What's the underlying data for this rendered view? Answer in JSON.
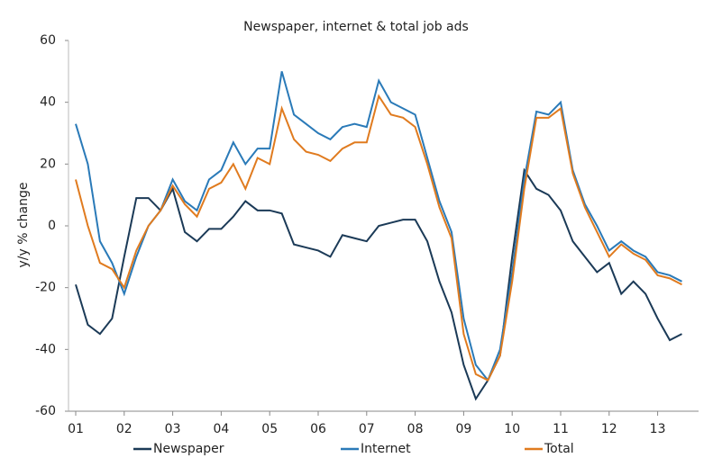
{
  "chart_data": {
    "type": "line",
    "title": "Newspaper, internet & total job ads",
    "y_label": "y/y % change",
    "categories": [
      "01",
      null,
      null,
      null,
      "02",
      null,
      null,
      null,
      "03",
      null,
      null,
      null,
      "04",
      null,
      null,
      null,
      "05",
      null,
      null,
      null,
      "06",
      null,
      null,
      null,
      "07",
      null,
      null,
      null,
      "08",
      null,
      null,
      null,
      "09",
      null,
      null,
      null,
      "10",
      null,
      null,
      null,
      "11",
      null,
      null,
      null,
      "12",
      null,
      null,
      null,
      "13",
      null,
      null
    ],
    "series": [
      {
        "name": "Newspaper",
        "color": "#1b3a57",
        "values": [
          -19,
          -32,
          -35,
          -30,
          -10,
          9,
          9,
          5,
          12,
          -2,
          -5,
          -1,
          -1,
          3,
          8,
          5,
          5,
          4,
          -6,
          -7,
          -8,
          -10,
          -3,
          -4,
          -5,
          0,
          1,
          2,
          2,
          -5,
          -18,
          -28,
          -45,
          -56,
          -50,
          -42,
          -10,
          18,
          12,
          10,
          5,
          -5,
          -10,
          -15,
          -12,
          -22,
          -18,
          -22,
          -30,
          -37,
          -35
        ]
      },
      {
        "name": "Internet",
        "color": "#2a7ab8",
        "values": [
          33,
          20,
          -5,
          -12,
          -22,
          -10,
          0,
          5,
          15,
          8,
          5,
          15,
          18,
          27,
          20,
          25,
          25,
          50,
          36,
          33,
          30,
          28,
          32,
          33,
          32,
          47,
          40,
          38,
          36,
          22,
          8,
          -2,
          -30,
          -45,
          -50,
          -40,
          -15,
          15,
          37,
          36,
          40,
          18,
          7,
          0,
          -8,
          -5,
          -8,
          -10,
          -15,
          -16,
          -18
        ]
      },
      {
        "name": "Total",
        "color": "#e07b1f",
        "values": [
          15,
          0,
          -12,
          -14,
          -20,
          -8,
          0,
          5,
          13,
          7,
          3,
          12,
          14,
          20,
          12,
          22,
          20,
          38,
          28,
          24,
          23,
          21,
          25,
          27,
          27,
          42,
          36,
          35,
          32,
          20,
          6,
          -4,
          -35,
          -48,
          -50,
          -42,
          -18,
          12,
          35,
          35,
          38,
          17,
          6,
          -2,
          -10,
          -6,
          -9,
          -11,
          -16,
          -17,
          -19
        ]
      }
    ],
    "ylim": [
      -60,
      60
    ],
    "yticks": [
      -60,
      -40,
      -20,
      0,
      20,
      40,
      60
    ],
    "grid": false,
    "legend": "bottom"
  }
}
